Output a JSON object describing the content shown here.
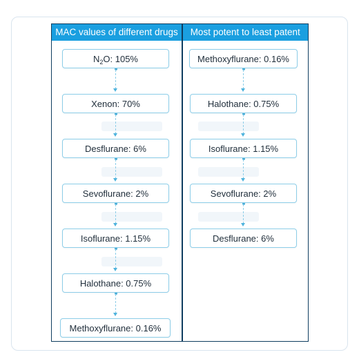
{
  "headers": {
    "left": "MAC values of different drugs",
    "right": "Most potent to least patent"
  },
  "left_column": {
    "first": {
      "prefix": "N",
      "subscript": "2",
      "suffix": "O: 105%"
    },
    "items": [
      "Xenon: 70%",
      "Desflurane: 6%",
      "Sevoflurane: 2%",
      "Isoflurane: 1.15%",
      "Halothane: 0.75%",
      "Methoxyflurane: 0.16%"
    ]
  },
  "right_column": {
    "items": [
      "Methoxyflurane: 0.16%",
      "Halothane: 0.75%",
      "Isoflurane: 1.15%",
      "Sevoflurane: 2%",
      "Desflurane: 6%"
    ]
  }
}
